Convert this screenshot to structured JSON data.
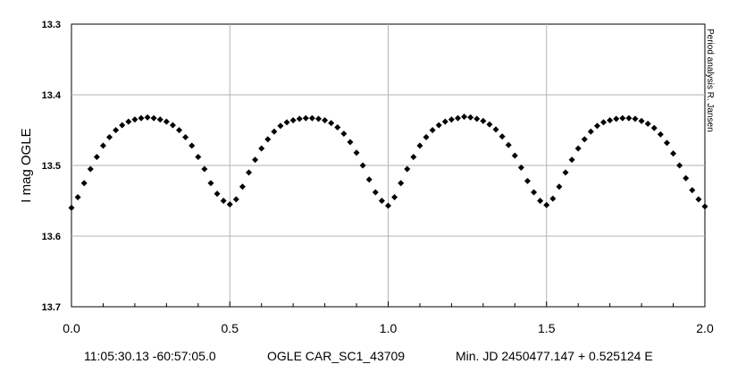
{
  "chart_data": {
    "type": "scatter",
    "title": "",
    "xlabel": "",
    "ylabel": "I mag OGLE",
    "xlim": [
      0.0,
      2.0
    ],
    "ylim": [
      13.7,
      13.3
    ],
    "y_inverted": true,
    "grid": true,
    "x_ticks": [
      "0.0",
      "0.5",
      "1.0",
      "1.5",
      "2.0"
    ],
    "y_ticks": [
      "13.3",
      "13.4",
      "13.5",
      "13.6",
      "13.7"
    ],
    "footer": {
      "coordinates": "11:05:30.13 -60:57:05.0",
      "star_id": "OGLE CAR_SC1_43709",
      "ephemeris": "Min. JD 2450477.147 + 0.525124 E"
    },
    "side_note": "Period analysis  R. Jansen",
    "marker_color": "#000000",
    "series": [
      {
        "name": "",
        "x": [
          0.0,
          0.02,
          0.04,
          0.06,
          0.08,
          0.1,
          0.12,
          0.14,
          0.16,
          0.18,
          0.2,
          0.22,
          0.24,
          0.26,
          0.28,
          0.3,
          0.32,
          0.34,
          0.36,
          0.38,
          0.4,
          0.42,
          0.44,
          0.46,
          0.48,
          0.5,
          0.52,
          0.54,
          0.56,
          0.58,
          0.6,
          0.62,
          0.64,
          0.66,
          0.68,
          0.7,
          0.72,
          0.74,
          0.76,
          0.78,
          0.8,
          0.82,
          0.84,
          0.86,
          0.88,
          0.9,
          0.92,
          0.94,
          0.96,
          0.98,
          1.0,
          1.02,
          1.04,
          1.06,
          1.08,
          1.1,
          1.12,
          1.14,
          1.16,
          1.18,
          1.2,
          1.22,
          1.24,
          1.26,
          1.28,
          1.3,
          1.32,
          1.34,
          1.36,
          1.38,
          1.4,
          1.42,
          1.44,
          1.46,
          1.48,
          1.5,
          1.52,
          1.54,
          1.56,
          1.58,
          1.6,
          1.62,
          1.64,
          1.66,
          1.68,
          1.7,
          1.72,
          1.74,
          1.76,
          1.78,
          1.8,
          1.82,
          1.84,
          1.86,
          1.88,
          1.9,
          1.92,
          1.94,
          1.96,
          1.98,
          2.0
        ],
        "y": [
          13.56,
          13.545,
          13.525,
          13.505,
          13.488,
          13.472,
          13.46,
          13.45,
          13.443,
          13.438,
          13.435,
          13.433,
          13.432,
          13.433,
          13.435,
          13.438,
          13.443,
          13.45,
          13.46,
          13.472,
          13.488,
          13.505,
          13.525,
          13.54,
          13.55,
          13.555,
          13.548,
          13.53,
          13.51,
          13.492,
          13.476,
          13.463,
          13.452,
          13.444,
          13.439,
          13.436,
          13.434,
          13.433,
          13.433,
          13.434,
          13.436,
          13.44,
          13.446,
          13.455,
          13.467,
          13.482,
          13.5,
          13.52,
          13.538,
          13.55,
          13.557,
          13.545,
          13.525,
          13.505,
          13.488,
          13.472,
          13.46,
          13.45,
          13.443,
          13.438,
          13.435,
          13.433,
          13.431,
          13.432,
          13.434,
          13.437,
          13.442,
          13.449,
          13.459,
          13.471,
          13.486,
          13.503,
          13.522,
          13.538,
          13.55,
          13.556,
          13.547,
          13.53,
          13.51,
          13.492,
          13.476,
          13.463,
          13.452,
          13.444,
          13.439,
          13.436,
          13.434,
          13.433,
          13.433,
          13.434,
          13.437,
          13.441,
          13.447,
          13.456,
          13.468,
          13.483,
          13.5,
          13.518,
          13.535,
          13.548,
          13.558
        ]
      }
    ]
  }
}
